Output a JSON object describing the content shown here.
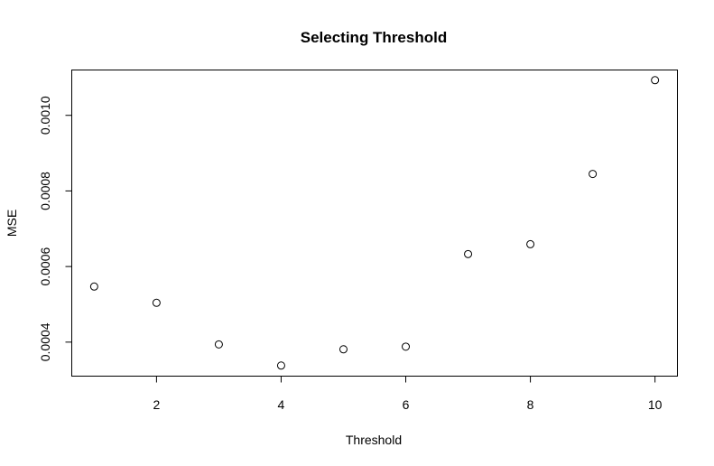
{
  "chart_data": {
    "type": "scatter",
    "title": "Selecting Threshold",
    "xlabel": "Threshold",
    "ylabel": "MSE",
    "x": [
      1,
      2,
      3,
      4,
      5,
      6,
      7,
      8,
      9,
      10
    ],
    "y": [
      0.000547,
      0.000504,
      0.000394,
      0.000338,
      0.000381,
      0.000388,
      0.000633,
      0.000659,
      0.000845,
      0.001093
    ],
    "xticks": [
      2,
      4,
      6,
      8,
      10
    ],
    "xtick_labels": [
      "2",
      "4",
      "6",
      "8",
      "10"
    ],
    "yticks": [
      0.0004,
      0.0006,
      0.0008,
      0.001
    ],
    "ytick_labels": [
      "0.0004",
      "0.0006",
      "0.0008",
      "0.0010"
    ],
    "xlim": [
      0.64,
      10.36
    ],
    "ylim": [
      0.00031,
      0.00112
    ],
    "grid": false,
    "marker": "open-circle",
    "color": "#000000"
  }
}
